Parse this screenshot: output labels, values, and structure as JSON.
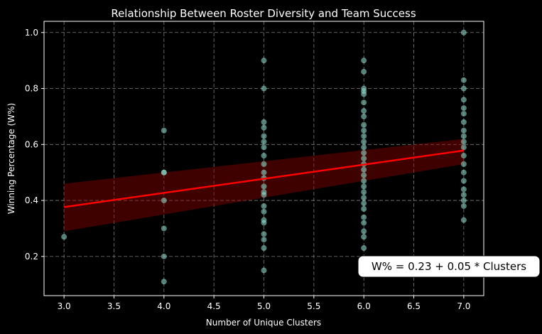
{
  "chart_data": {
    "type": "scatter",
    "title": "Relationship Between Roster Diversity and Team Success",
    "xlabel": "Number of Unique Clusters",
    "ylabel": "Winning Percentage (W%)",
    "xlim": [
      2.8,
      7.2
    ],
    "ylim": [
      0.06,
      1.04
    ],
    "xticks": [
      "3.0",
      "3.5",
      "4.0",
      "4.5",
      "5.0",
      "5.5",
      "6.0",
      "6.5",
      "7.0"
    ],
    "yticks": [
      "0.2",
      "0.4",
      "0.6",
      "0.8",
      "1.0"
    ],
    "grid": true,
    "points": [
      [
        3,
        0.27
      ],
      [
        4,
        0.11
      ],
      [
        4,
        0.2
      ],
      [
        4,
        0.3
      ],
      [
        4,
        0.4
      ],
      [
        4,
        0.5
      ],
      [
        4,
        0.5
      ],
      [
        4,
        0.65
      ],
      [
        5,
        0.15
      ],
      [
        5,
        0.23
      ],
      [
        5,
        0.26
      ],
      [
        5,
        0.28
      ],
      [
        5,
        0.32
      ],
      [
        5,
        0.33
      ],
      [
        5,
        0.36
      ],
      [
        5,
        0.38
      ],
      [
        5,
        0.42
      ],
      [
        5,
        0.43
      ],
      [
        5,
        0.45
      ],
      [
        5,
        0.48
      ],
      [
        5,
        0.5
      ],
      [
        5,
        0.53
      ],
      [
        5,
        0.56
      ],
      [
        5,
        0.59
      ],
      [
        5,
        0.61
      ],
      [
        5,
        0.63
      ],
      [
        5,
        0.66
      ],
      [
        5,
        0.68
      ],
      [
        5,
        0.8
      ],
      [
        5,
        0.9
      ],
      [
        6,
        0.23
      ],
      [
        6,
        0.27
      ],
      [
        6,
        0.29
      ],
      [
        6,
        0.32
      ],
      [
        6,
        0.34
      ],
      [
        6,
        0.37
      ],
      [
        6,
        0.39
      ],
      [
        6,
        0.41
      ],
      [
        6,
        0.43
      ],
      [
        6,
        0.45
      ],
      [
        6,
        0.47
      ],
      [
        6,
        0.49
      ],
      [
        6,
        0.51
      ],
      [
        6,
        0.53
      ],
      [
        6,
        0.55
      ],
      [
        6,
        0.57
      ],
      [
        6,
        0.59
      ],
      [
        6,
        0.61
      ],
      [
        6,
        0.63
      ],
      [
        6,
        0.65
      ],
      [
        6,
        0.67
      ],
      [
        6,
        0.7
      ],
      [
        6,
        0.72
      ],
      [
        6,
        0.75
      ],
      [
        6,
        0.78
      ],
      [
        6,
        0.79
      ],
      [
        6,
        0.8
      ],
      [
        6,
        0.86
      ],
      [
        6,
        0.9
      ],
      [
        7,
        0.33
      ],
      [
        7,
        0.38
      ],
      [
        7,
        0.4
      ],
      [
        7,
        0.42
      ],
      [
        7,
        0.44
      ],
      [
        7,
        0.47
      ],
      [
        7,
        0.5
      ],
      [
        7,
        0.53
      ],
      [
        7,
        0.56
      ],
      [
        7,
        0.59
      ],
      [
        7,
        0.61
      ],
      [
        7,
        0.63
      ],
      [
        7,
        0.65
      ],
      [
        7,
        0.68
      ],
      [
        7,
        0.71
      ],
      [
        7,
        0.73
      ],
      [
        7,
        0.76
      ],
      [
        7,
        0.8
      ],
      [
        7,
        0.83
      ],
      [
        7,
        1.0
      ]
    ],
    "regression": {
      "intercept": 0.225,
      "slope": 0.0505,
      "ci_at_x3": [
        0.29,
        0.46
      ],
      "ci_at_x7": [
        0.53,
        0.62
      ],
      "line_color": "#ff0000",
      "band_color": "#8b0000"
    },
    "annotation": "W% = 0.23 + 0.05 * Clusters",
    "point_color": "#8dd3c7",
    "background": "#000000"
  }
}
